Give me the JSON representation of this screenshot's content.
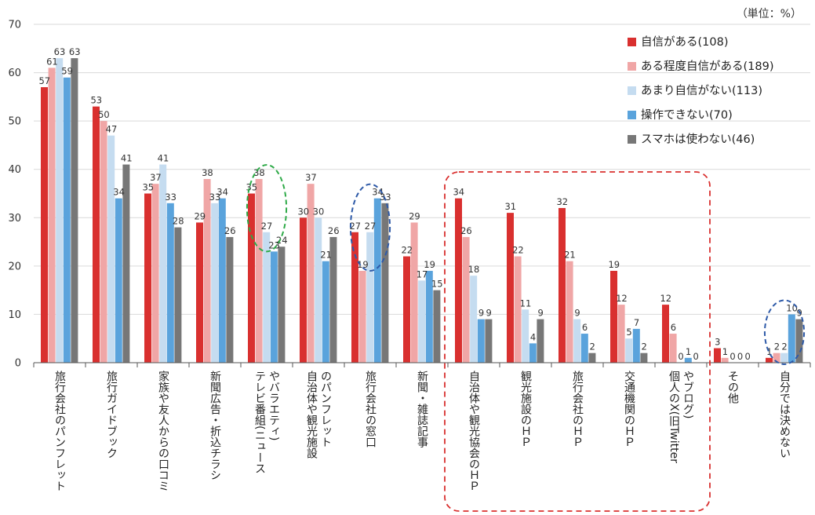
{
  "chart_data": {
    "type": "bar",
    "unit_label": "（単位：%）",
    "ylim": [
      0,
      70
    ],
    "yticks": [
      "0",
      "10",
      "20",
      "30",
      "40",
      "50",
      "60",
      "70"
    ],
    "grid": true,
    "legend_position": "top-right",
    "categories": [
      [
        "旅行会社のパンフレット"
      ],
      [
        "旅行ガイドブック"
      ],
      [
        "家族や友人からの口コミ"
      ],
      [
        "新聞広告・折込チラシ"
      ],
      [
        "テレビ番組(ニュース",
        "やバラエティ)"
      ],
      [
        "自治体や観光施設",
        "のパンフレット"
      ],
      [
        "旅行会社の窓口"
      ],
      [
        "新聞・雑誌記事"
      ],
      [
        "自治体や観光協会のＨＰ"
      ],
      [
        "観光施設のＨＰ"
      ],
      [
        "旅行会社のＨＰ"
      ],
      [
        "交通機関のＨＰ"
      ],
      [
        "個人のX(旧Twitter",
        "やブログ)"
      ],
      [
        "その他"
      ],
      [
        "自分では決めない"
      ]
    ],
    "series": [
      {
        "name": "自信がある(108)",
        "color": "#d9302f",
        "values": [
          57,
          53,
          35,
          29,
          35,
          30,
          27,
          22,
          34,
          31,
          32,
          19,
          12,
          3,
          1
        ],
        "labels": [
          "57",
          "53",
          "35",
          "29",
          "35",
          "30",
          "27",
          "22",
          "34",
          "31",
          "32",
          "19",
          "12",
          "3",
          "1"
        ]
      },
      {
        "name": "ある程度自信がある(189)",
        "color": "#f0a6a6",
        "values": [
          61,
          50,
          37,
          38,
          38,
          37,
          19,
          29,
          26,
          22,
          21,
          12,
          6,
          1,
          2
        ],
        "labels": [
          "61",
          "50",
          "37",
          "38",
          "38",
          "37",
          "19",
          "29",
          "26",
          "22",
          "21",
          "12",
          "6",
          "1",
          "2"
        ]
      },
      {
        "name": "あまり自信がない(113)",
        "color": "#c5dcf0",
        "values": [
          63,
          47,
          41,
          33,
          27,
          30,
          27,
          17,
          18,
          11,
          9,
          5,
          0,
          0,
          2
        ],
        "labels": [
          "63",
          "47",
          "41",
          "33",
          "27",
          "30",
          "27",
          "17",
          "18",
          "11",
          "9",
          "5",
          "0",
          "0",
          "2"
        ]
      },
      {
        "name": "操作できない(70)",
        "color": "#5aa3dc",
        "values": [
          59,
          34,
          33,
          34,
          23,
          21,
          34,
          19,
          9,
          4,
          6,
          7,
          1,
          0,
          10
        ],
        "labels": [
          "59",
          "34",
          "33",
          "34",
          "23",
          "21",
          "34",
          "19",
          "9",
          "4",
          "6",
          "7",
          "1",
          "0",
          "10"
        ]
      },
      {
        "name": "スマホは使わない(46)",
        "color": "#777777",
        "values": [
          63,
          41,
          28,
          26,
          24,
          26,
          33,
          15,
          9,
          9,
          2,
          2,
          0,
          0,
          9
        ],
        "labels": [
          "63",
          "41",
          "28",
          "26",
          "24",
          "26",
          "33",
          "15",
          "9",
          "9",
          "2",
          "2",
          "0",
          "0",
          "9"
        ]
      }
    ],
    "annotations": [
      {
        "type": "ellipse",
        "style": "dashed",
        "color": "#2eaa48",
        "category_index": 4
      },
      {
        "type": "ellipse",
        "style": "dashed",
        "color": "#2e5aa8",
        "category_index": 6
      },
      {
        "type": "ellipse",
        "style": "dashed",
        "color": "#2e5aa8",
        "category_index": 14
      },
      {
        "type": "rounded-rect",
        "style": "dashed",
        "color": "#d9302f",
        "category_range": [
          8,
          12
        ]
      }
    ]
  }
}
